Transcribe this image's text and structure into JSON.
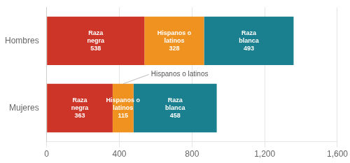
{
  "chart_data": {
    "type": "bar",
    "orientation": "horizontal",
    "stacked": true,
    "categories": [
      "Hombres",
      "Mujeres"
    ],
    "series": [
      {
        "name": "Raza\nnegra",
        "color": "#cc3527",
        "values": [
          538,
          363
        ]
      },
      {
        "name": "Hispanos o\nlatinos",
        "color": "#f0921f",
        "values": [
          328,
          115
        ]
      },
      {
        "name": "Raza\nblanca",
        "color": "#1a7f8e",
        "values": [
          493,
          458
        ]
      }
    ],
    "xlim": [
      0,
      1600
    ],
    "xticks": [
      0,
      400,
      800,
      1200,
      1600
    ],
    "grid": true,
    "data_labels": true,
    "annotations": [
      "Hispanos o latinos"
    ]
  }
}
